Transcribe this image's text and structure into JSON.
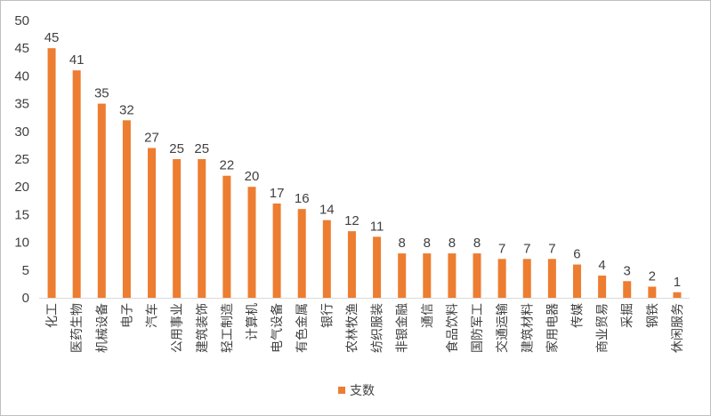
{
  "chart_data": {
    "type": "bar",
    "title": "",
    "xlabel": "",
    "ylabel": "",
    "ylim": [
      0,
      50
    ],
    "yticks": [
      0,
      5,
      10,
      15,
      20,
      25,
      30,
      35,
      40,
      45,
      50
    ],
    "grid": false,
    "legend_position": "bottom",
    "categories": [
      "化工",
      "医药生物",
      "机械设备",
      "电子",
      "汽车",
      "公用事业",
      "建筑装饰",
      "轻工制造",
      "计算机",
      "电气设备",
      "有色金属",
      "银行",
      "农林牧渔",
      "纺织服装",
      "非银金融",
      "通信",
      "食品饮料",
      "国防军工",
      "交通运输",
      "建筑材料",
      "家用电器",
      "传媒",
      "商业贸易",
      "采掘",
      "钢铁",
      "休闲服务"
    ],
    "series": [
      {
        "name": "支数",
        "color": "#ED7D31",
        "values": [
          45,
          41,
          35,
          32,
          27,
          25,
          25,
          22,
          20,
          17,
          16,
          14,
          12,
          11,
          8,
          8,
          8,
          8,
          7,
          7,
          7,
          6,
          4,
          3,
          2,
          1
        ]
      }
    ]
  }
}
